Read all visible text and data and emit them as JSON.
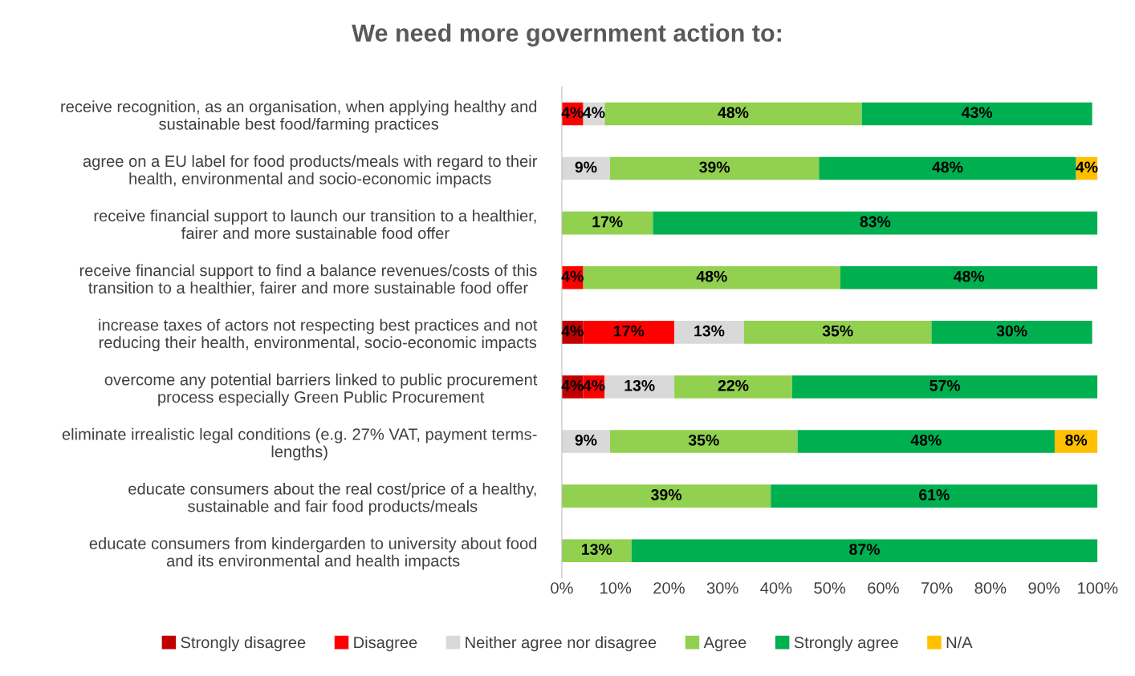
{
  "chart_data": {
    "type": "bar",
    "orientation": "horizontal",
    "stacked": true,
    "title": "We need more government action to:",
    "categories": [
      "receive recognition, as an organisation, when applying healthy and\nsustainable best food/farming practices",
      "agree on a EU label for food products/meals with regard to their\nhealth, environmental and socio-economic impacts",
      "receive financial support to launch our transition to a healthier,\nfairer and more sustainable food offer",
      "receive financial support to find a balance revenues/costs of this\ntransition to a healthier, fairer and more sustainable food offer",
      "increase taxes of actors not respecting best practices and not\nreducing their health, environmental, socio-economic impacts",
      "overcome any potential barriers linked to public procurement\nprocess especially Green Public Procurement",
      "eliminate irrealistic legal conditions (e.g. 27% VAT, payment terms-\nlengths)",
      "educate consumers about the real cost/price of a healthy,\nsustainable and fair food products/meals",
      "educate consumers from kindergarden to university about food\nand its environmental and health impacts"
    ],
    "series": [
      {
        "name": "Strongly disagree",
        "color": "#c00000",
        "values": [
          null,
          null,
          null,
          null,
          4,
          4,
          null,
          null,
          null
        ],
        "value_labels": [
          null,
          null,
          null,
          null,
          "4%",
          "4%",
          null,
          null,
          null
        ]
      },
      {
        "name": "Disagree",
        "color": "#ff0000",
        "values": [
          4,
          null,
          null,
          4,
          17,
          4,
          null,
          null,
          null
        ],
        "value_labels": [
          "4%",
          null,
          null,
          "4%",
          "17%",
          "4%",
          null,
          null,
          null
        ]
      },
      {
        "name": "Neither agree nor disagree",
        "color": "#d9d9d9",
        "values": [
          4,
          9,
          null,
          null,
          13,
          13,
          9,
          null,
          null
        ],
        "value_labels": [
          "4%",
          "9%",
          null,
          null,
          "13%",
          "13%",
          "9%",
          null,
          null
        ]
      },
      {
        "name": "Agree",
        "color": "#92d050",
        "values": [
          48,
          39,
          17,
          48,
          35,
          22,
          35,
          39,
          13
        ],
        "value_labels": [
          "48%",
          "39%",
          "17%",
          "48%",
          "35%",
          "22%",
          "35%",
          "39%",
          "13%"
        ]
      },
      {
        "name": "Strongly agree",
        "color": "#00b050",
        "values": [
          43,
          48,
          83,
          48,
          30,
          57,
          48,
          61,
          87
        ],
        "value_labels": [
          "43%",
          "48%",
          "83%",
          "48%",
          "30%",
          "57%",
          "48%",
          "61%",
          "87%"
        ]
      },
      {
        "name": "N/A",
        "color": "#ffc000",
        "values": [
          null,
          4,
          null,
          null,
          null,
          null,
          8,
          null,
          null
        ],
        "value_labels": [
          null,
          "4%",
          null,
          null,
          null,
          null,
          "8%",
          null,
          null
        ]
      }
    ],
    "xlim": [
      0,
      100
    ],
    "xticks": [
      {
        "value": 0,
        "label": "0%"
      },
      {
        "value": 10,
        "label": "10%"
      },
      {
        "value": 20,
        "label": "20%"
      },
      {
        "value": 30,
        "label": "30%"
      },
      {
        "value": 40,
        "label": "40%"
      },
      {
        "value": 50,
        "label": "50%"
      },
      {
        "value": 60,
        "label": "60%"
      },
      {
        "value": 70,
        "label": "70%"
      },
      {
        "value": 80,
        "label": "80%"
      },
      {
        "value": 90,
        "label": "90%"
      },
      {
        "value": 100,
        "label": "100%"
      }
    ],
    "legend": "bottom",
    "grid": false
  }
}
